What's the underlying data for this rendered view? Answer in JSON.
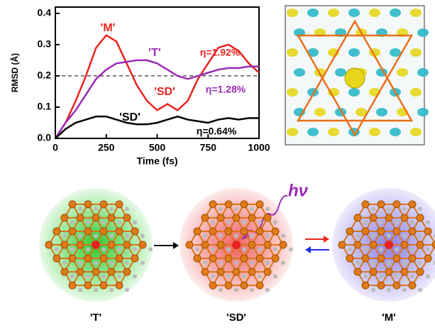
{
  "chart_data": {
    "type": "line",
    "xlabel": "Time (fs)",
    "ylabel": "RMSD (Å)",
    "x": [
      0,
      50,
      100,
      150,
      200,
      250,
      300,
      350,
      400,
      450,
      500,
      550,
      600,
      650,
      700,
      750,
      800,
      850,
      900,
      950,
      1000
    ],
    "series": [
      {
        "name": "'M'",
        "color": "#e8231f",
        "values": [
          0,
          0.05,
          0.12,
          0.2,
          0.29,
          0.33,
          0.31,
          0.24,
          0.17,
          0.12,
          0.09,
          0.11,
          0.09,
          0.12,
          0.19,
          0.24,
          0.29,
          0.3,
          0.28,
          0.24,
          0.21
        ]
      },
      {
        "name": "'T'",
        "color": "#9b2bb4",
        "values": [
          0,
          0.05,
          0.09,
          0.14,
          0.19,
          0.22,
          0.24,
          0.245,
          0.25,
          0.25,
          0.24,
          0.22,
          0.2,
          0.19,
          0.2,
          0.21,
          0.22,
          0.225,
          0.225,
          0.23,
          0.23
        ]
      },
      {
        "name": "'SD'",
        "color": "#000000",
        "values": [
          0,
          0.03,
          0.05,
          0.06,
          0.07,
          0.07,
          0.06,
          0.05,
          0.045,
          0.045,
          0.05,
          0.06,
          0.07,
          0.06,
          0.055,
          0.05,
          0.06,
          0.065,
          0.06,
          0.065,
          0.065
        ]
      }
    ],
    "annotations": [
      {
        "text": "'SD'",
        "color": "#e8231f"
      },
      {
        "text": "η=1.92%",
        "color": "#e8231f"
      },
      {
        "text": "η=1.28%",
        "color": "#9b2bb4"
      },
      {
        "text": "η=0.64%",
        "color": "#000000"
      }
    ],
    "reference_line": 0.2,
    "xlim": [
      0,
      1000
    ],
    "xticks": [
      0,
      250,
      500,
      750,
      1000
    ],
    "ylim": [
      0,
      0.42
    ],
    "yticks": [
      {
        "value": 0,
        "label": "0.0"
      },
      0.1,
      0.2,
      0.3,
      0.4
    ]
  },
  "figure": {
    "light": "hν",
    "labels": [
      "'T'",
      "'SD'",
      "'M'"
    ]
  }
}
